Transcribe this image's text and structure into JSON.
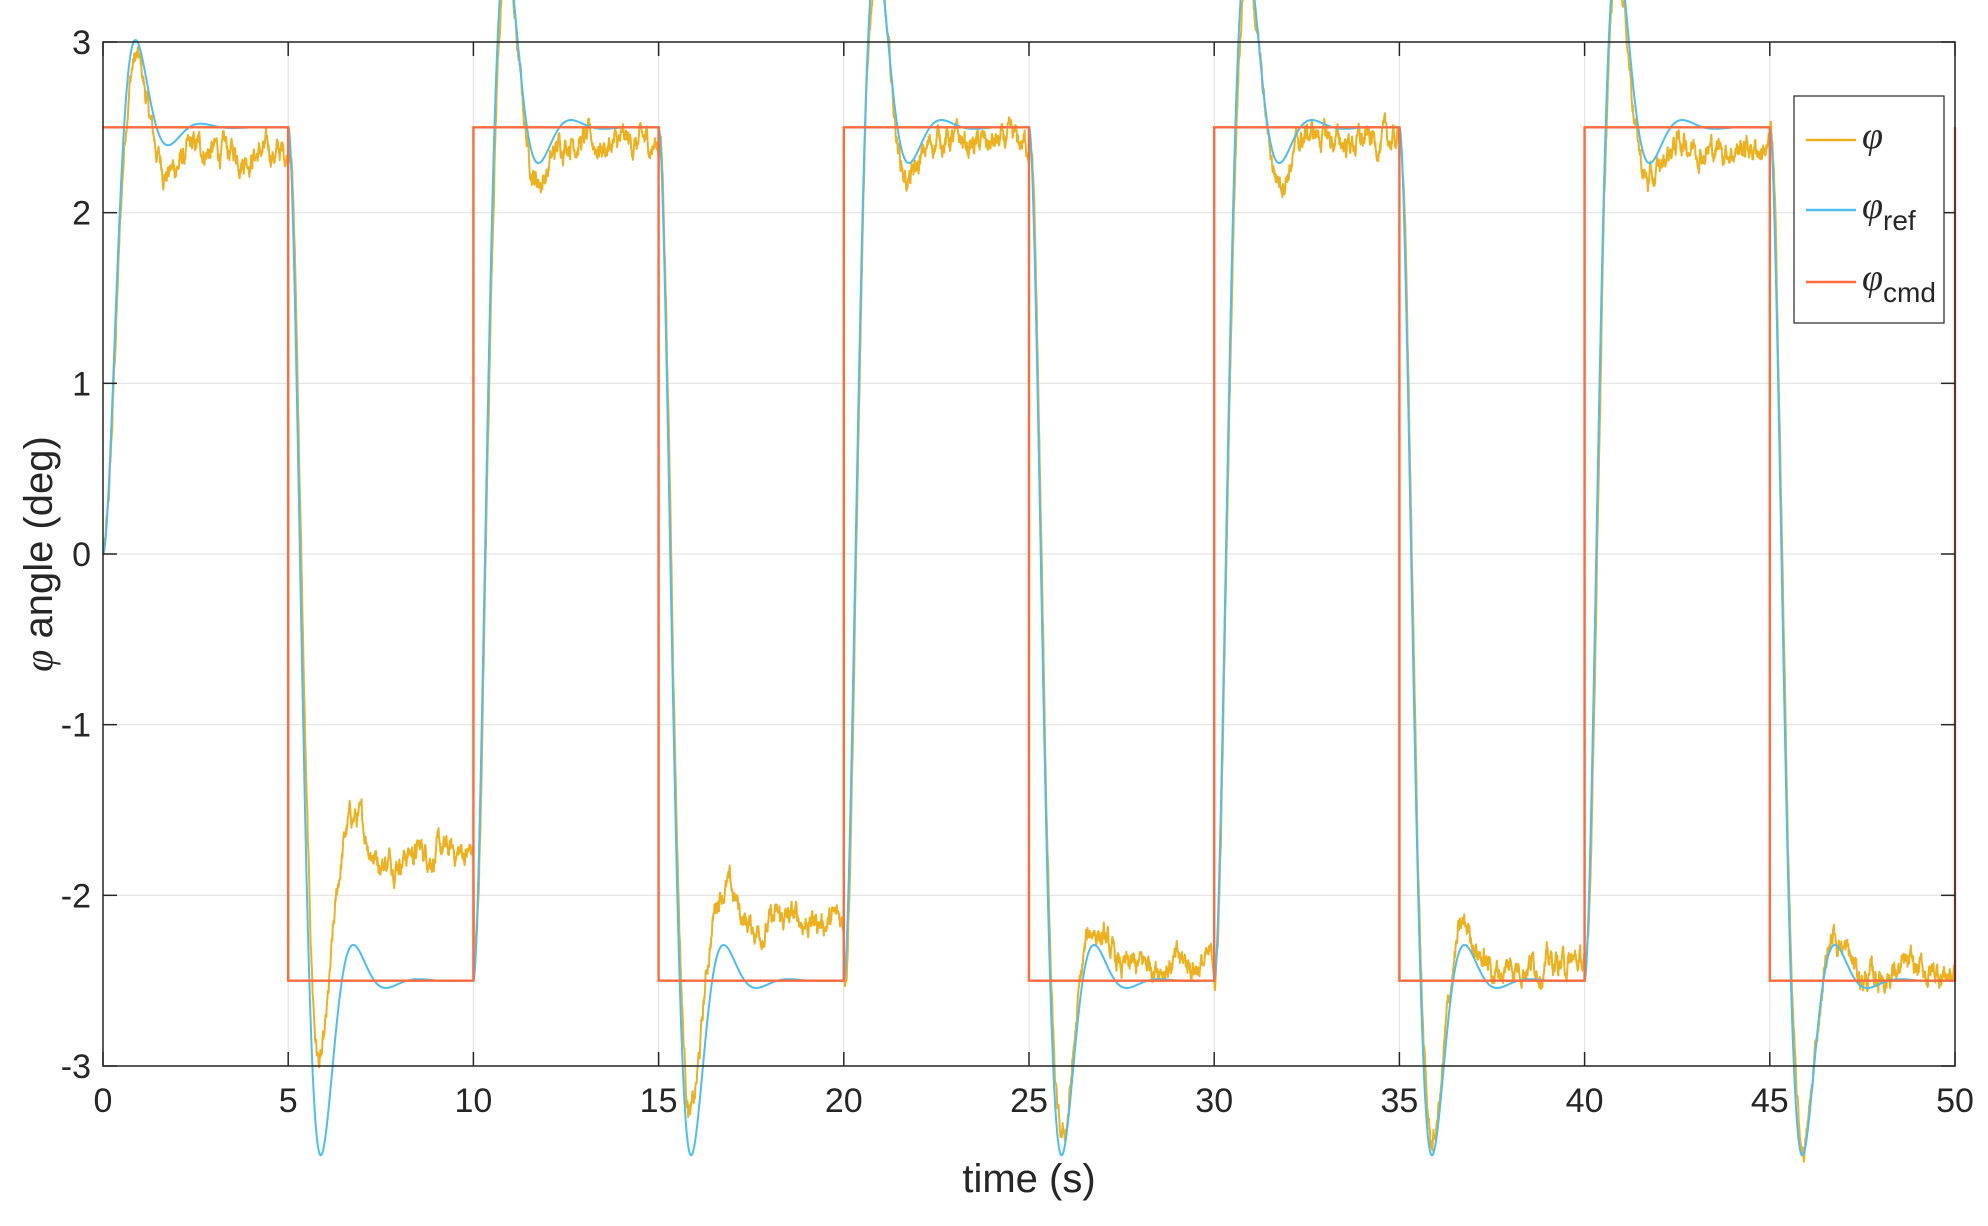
{
  "chart_data": {
    "type": "line",
    "title": "",
    "xlabel": "time (s)",
    "ylabel_symbol": "φ",
    "ylabel_text": "angle (deg)",
    "xlim": [
      0,
      50
    ],
    "ylim": [
      -3,
      3
    ],
    "xticks": [
      0,
      5,
      10,
      15,
      20,
      25,
      30,
      35,
      40,
      45,
      50
    ],
    "yticks": [
      -3,
      -2,
      -1,
      0,
      1,
      2,
      3
    ],
    "grid": true,
    "legend_position": "top-right",
    "command_amplitude": 2.5,
    "switch_period_s": 5,
    "series": [
      {
        "name": "φ",
        "name_sub": "",
        "color": "#EDB120",
        "settled_levels": [
          {
            "t_start": 0,
            "t_end": 5,
            "level": 2.35
          },
          {
            "t_start": 5,
            "t_end": 10,
            "level": -1.75
          },
          {
            "t_start": 10,
            "t_end": 15,
            "level": 2.4
          },
          {
            "t_start": 15,
            "t_end": 20,
            "level": -2.15
          },
          {
            "t_start": 20,
            "t_end": 25,
            "level": 2.4
          },
          {
            "t_start": 25,
            "t_end": 30,
            "level": -2.4
          },
          {
            "t_start": 30,
            "t_end": 35,
            "level": 2.42
          },
          {
            "t_start": 35,
            "t_end": 40,
            "level": -2.4
          },
          {
            "t_start": 40,
            "t_end": 45,
            "level": 2.38
          },
          {
            "t_start": 45,
            "t_end": 50,
            "level": -2.45
          }
        ]
      },
      {
        "name": "φ",
        "name_sub": "ref",
        "color": "#4DBEEE",
        "peak_overshoot": 0.23,
        "settling_time_s": 1.5
      },
      {
        "name": "φ",
        "name_sub": "cmd",
        "color": "#FF6B3D",
        "x": [
          0,
          5,
          5,
          10,
          10,
          15,
          15,
          20,
          20,
          25,
          25,
          30,
          30,
          35,
          35,
          40,
          40,
          45,
          45,
          50,
          50
        ],
        "y": [
          2.5,
          2.5,
          -2.5,
          -2.5,
          2.5,
          2.5,
          -2.5,
          -2.5,
          2.5,
          2.5,
          -2.5,
          -2.5,
          2.5,
          2.5,
          -2.5,
          -2.5,
          2.5,
          2.5,
          -2.5,
          -2.5,
          2.5
        ]
      }
    ]
  }
}
